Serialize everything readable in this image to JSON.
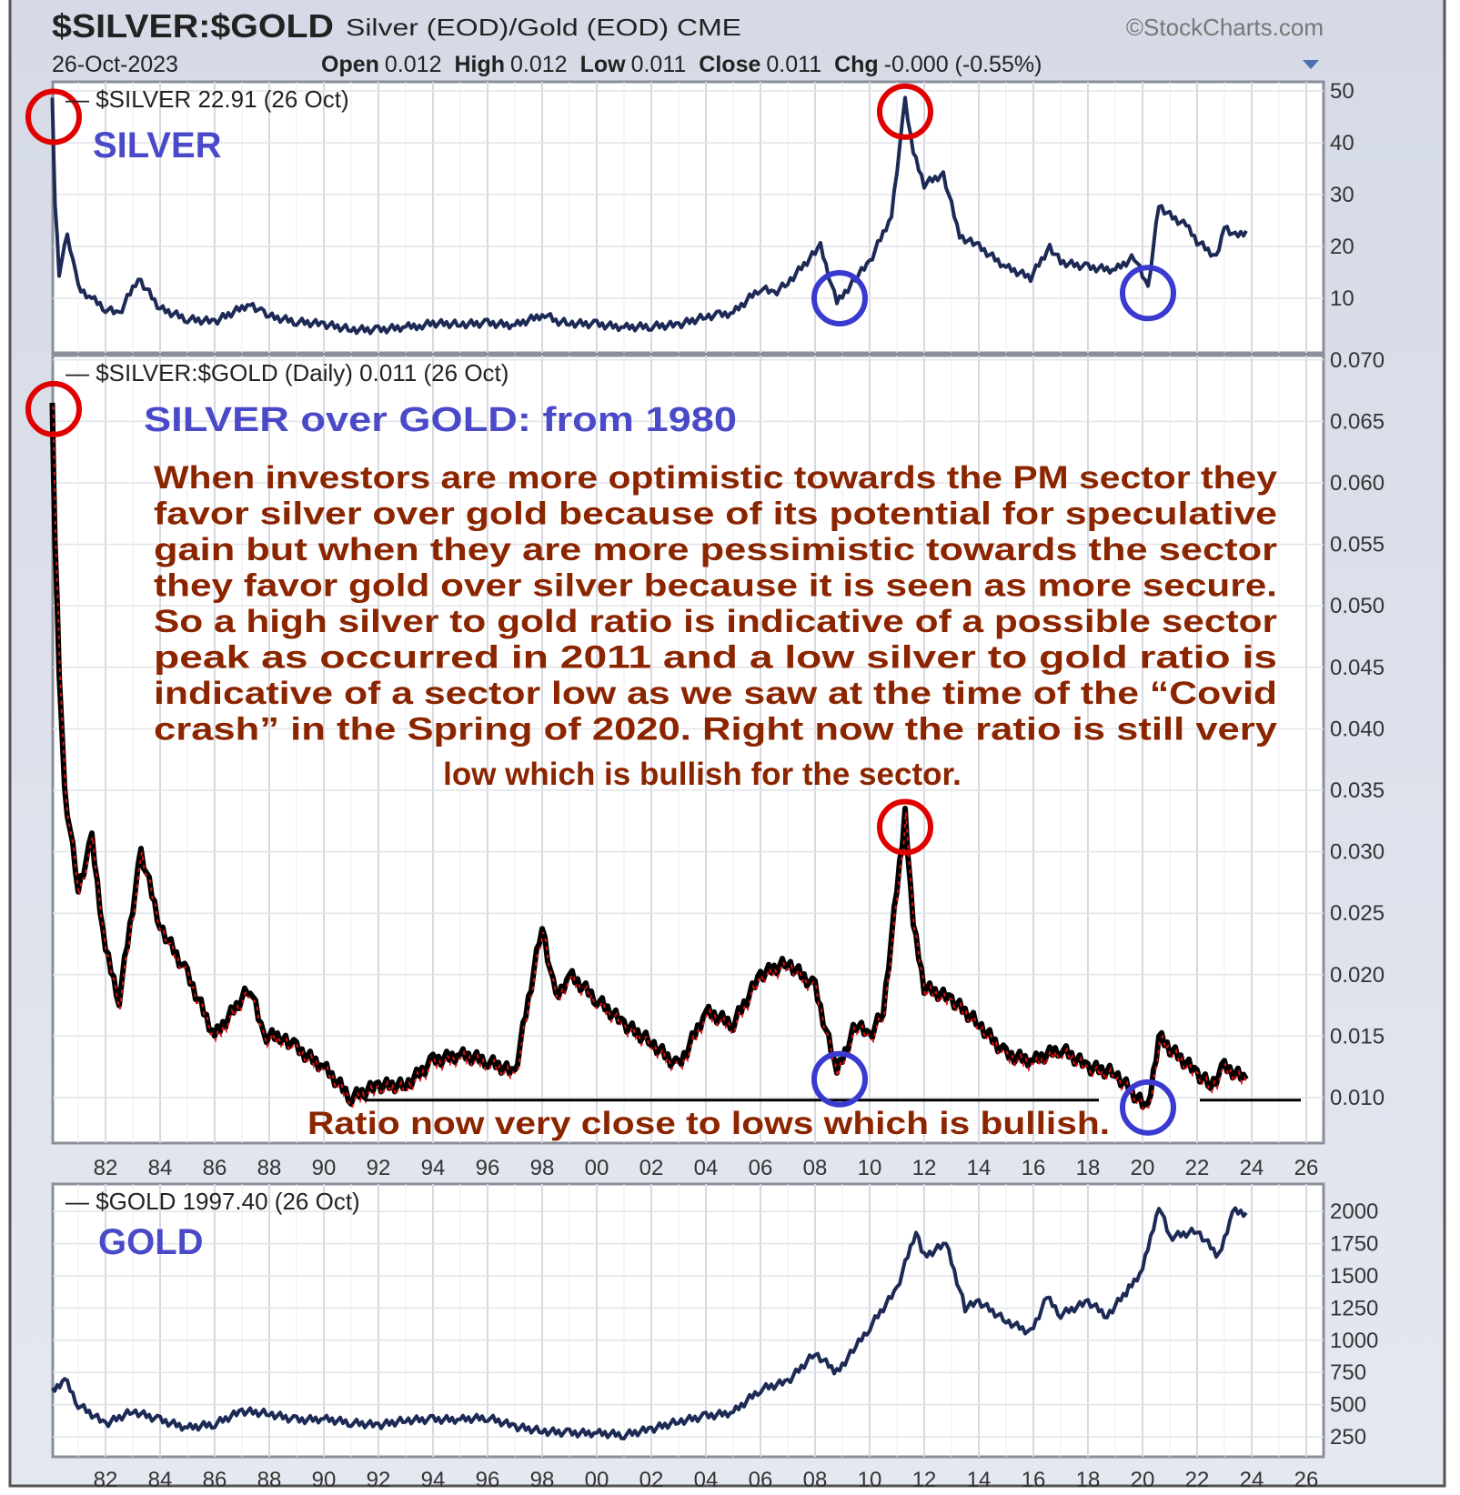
{
  "header": {
    "symbol": "$SILVER:$GOLD",
    "description": "Silver (EOD)/Gold (EOD)  CME",
    "source": "©StockCharts.com",
    "date": "26-Oct-2023",
    "open_label": "Open",
    "open": "0.012",
    "high_label": "High",
    "high": "0.012",
    "low_label": "Low",
    "low": "0.011",
    "close_label": "Close",
    "close": "0.011",
    "chg_label": "Chg",
    "chg": "-0.000 (-0.55%)",
    "dropdown_icon": "triangle-down-icon"
  },
  "colors": {
    "silver_line": "#1c2a55",
    "ratio_line": "#000000",
    "ratio_overlay": "#e01010",
    "gold_line": "#1c2a55",
    "annotation_text": "#8b2500",
    "title_blue": "#4a4ac8",
    "circle_high": "#e00000",
    "circle_low": "#3a3ad0"
  },
  "annotations": {
    "silver_title": "SILVER",
    "ratio_title": "SILVER over GOLD: from 1980",
    "gold_title": "GOLD",
    "paragraph": [
      "When investors are more optimistic towards the PM sector they",
      "favor silver over gold because of its potential for speculative",
      "gain but when they are more pessimistic towards the sector",
      "they favor gold over silver because it is seen as more secure.",
      "So a high silver to gold ratio is indicative of a possible sector",
      "peak as occurred in 2011 and a low silver to gold ratio is",
      "indicative of a sector low as we saw at the time of the “Covid",
      "crash” in the Spring of 2020. Right now the ratio is still very",
      "low which is bullish for the sector."
    ],
    "bottom_note": "Ratio now very close to lows which is bullish."
  },
  "chart_data": [
    {
      "type": "line",
      "title": "$SILVER 22.91 (26 Oct)",
      "ylim": [
        0,
        52
      ],
      "yticks": [
        "50",
        "40",
        "30",
        "20",
        "10"
      ],
      "ytick_values": [
        50,
        40,
        30,
        20,
        10
      ],
      "xlim": [
        1980,
        2026.6
      ],
      "series": [
        {
          "name": "$SILVER",
          "x": [
            1980.05,
            1980.15,
            1980.3,
            1980.6,
            1980.8,
            1981,
            1981.5,
            1982,
            1982.5,
            1983.2,
            1983.6,
            1984,
            1985,
            1986,
            1987.3,
            1987.8,
            1988,
            1989,
            1990,
            1991,
            1992,
            1993,
            1993.6,
            1994,
            1995,
            1996,
            1997,
            1998.1,
            1998.5,
            1999,
            2000,
            2001,
            2002,
            2003,
            2004,
            2004.5,
            2005,
            2006,
            2006.5,
            2007,
            2008.2,
            2008.8,
            2009.5,
            2010,
            2010.8,
            2011.3,
            2011.6,
            2012,
            2012.7,
            2013.3,
            2014,
            2015,
            2015.9,
            2016.6,
            2017,
            2018,
            2019,
            2019.7,
            2020.2,
            2020.6,
            2021,
            2021.6,
            2022,
            2022.7,
            2023,
            2023.4,
            2023.8
          ],
          "values": [
            48,
            28,
            15,
            22,
            18,
            12,
            10,
            8,
            7,
            14,
            11,
            8,
            6,
            5.5,
            9,
            7,
            6.5,
            5.5,
            5,
            4,
            3.9,
            4.5,
            4.8,
            5.2,
            5,
            5.2,
            4.8,
            7,
            5.6,
            5.2,
            5,
            4.4,
            4.6,
            4.9,
            6.5,
            6.8,
            7.2,
            12,
            11,
            13,
            20,
            9,
            14,
            17,
            26,
            48,
            38,
            32,
            34,
            22,
            20,
            16,
            14,
            20,
            17,
            16,
            15.5,
            18,
            12,
            28,
            26,
            24,
            21,
            18,
            24,
            22,
            23
          ]
        }
      ],
      "markers": [
        {
          "year": 1980.1,
          "value": 45,
          "kind": "high"
        },
        {
          "year": 2011.3,
          "value": 46,
          "kind": "high"
        },
        {
          "year": 2008.9,
          "value": 10,
          "kind": "low"
        },
        {
          "year": 2020.2,
          "value": 11,
          "kind": "low"
        }
      ]
    },
    {
      "type": "line",
      "title": "$SILVER:$GOLD (Daily) 0.011 (26 Oct)",
      "ylim": [
        0.006,
        0.071
      ],
      "yticks": [
        "0.070",
        "0.065",
        "0.060",
        "0.055",
        "0.050",
        "0.045",
        "0.040",
        "0.035",
        "0.030",
        "0.025",
        "0.020",
        "0.015",
        "0.010"
      ],
      "ytick_values": [
        0.07,
        0.065,
        0.06,
        0.055,
        0.05,
        0.045,
        0.04,
        0.035,
        0.03,
        0.025,
        0.02,
        0.015,
        0.01
      ],
      "series": [
        {
          "name": "$SILVER:$GOLD",
          "x": [
            1980.05,
            1980.15,
            1980.3,
            1980.5,
            1981,
            1981.5,
            1982,
            1982.5,
            1983.3,
            1984,
            1985,
            1986,
            1987.3,
            1987.8,
            1988.5,
            1989,
            1990,
            1991,
            1992,
            1993,
            1994,
            1995,
            1996,
            1997,
            1998,
            1998.5,
            1999,
            2000,
            2001,
            2002,
            2003,
            2004,
            2005,
            2006,
            2007,
            2008,
            2008.8,
            2009.5,
            2010,
            2010.5,
            2011.3,
            2011.6,
            2012,
            2013,
            2014,
            2015,
            2016,
            2017,
            2018,
            2019,
            2020.2,
            2020.6,
            2021,
            2022,
            2022.5,
            2023,
            2023.8
          ],
          "values": [
            0.066,
            0.055,
            0.045,
            0.035,
            0.027,
            0.031,
            0.022,
            0.018,
            0.03,
            0.024,
            0.02,
            0.015,
            0.019,
            0.015,
            0.015,
            0.014,
            0.0125,
            0.01,
            0.011,
            0.011,
            0.013,
            0.0135,
            0.013,
            0.012,
            0.024,
            0.018,
            0.02,
            0.018,
            0.016,
            0.0145,
            0.0125,
            0.017,
            0.016,
            0.02,
            0.021,
            0.019,
            0.012,
            0.016,
            0.015,
            0.017,
            0.033,
            0.024,
            0.019,
            0.018,
            0.016,
            0.0135,
            0.013,
            0.014,
            0.0125,
            0.012,
            0.009,
            0.015,
            0.014,
            0.012,
            0.011,
            0.0125,
            0.0115
          ]
        }
      ],
      "support_lines": [
        {
          "from": 1991.5,
          "to": 2018.4,
          "value": 0.0098
        },
        {
          "from": 2022.1,
          "to": 2025.8,
          "value": 0.0098
        }
      ],
      "markers": [
        {
          "year": 1980.1,
          "value": 0.066,
          "kind": "high"
        },
        {
          "year": 2011.3,
          "value": 0.032,
          "kind": "high"
        },
        {
          "year": 2008.9,
          "value": 0.0115,
          "kind": "low"
        },
        {
          "year": 2020.2,
          "value": 0.0092,
          "kind": "low"
        }
      ],
      "xticks": [
        "82",
        "84",
        "86",
        "88",
        "90",
        "92",
        "94",
        "96",
        "98",
        "00",
        "02",
        "04",
        "06",
        "08",
        "10",
        "12",
        "14",
        "16",
        "18",
        "20",
        "22",
        "24",
        "26"
      ]
    },
    {
      "type": "line",
      "title": "$GOLD 1997.40 (26 Oct)",
      "yticks": [
        "2000",
        "1750",
        "1500",
        "1250",
        "1000",
        "750",
        "500",
        "250"
      ],
      "ytick_values": [
        2000,
        1750,
        1500,
        1250,
        1000,
        750,
        500,
        250
      ],
      "series": [
        {
          "name": "$GOLD",
          "x": [
            1980.05,
            1980.5,
            1981,
            1982,
            1983,
            1984,
            1985,
            1986,
            1987,
            1988,
            1989,
            1990,
            1991,
            1992,
            1993,
            1994,
            1995,
            1996,
            1997,
            1998,
            1999,
            2000,
            2001,
            2002,
            2003,
            2004,
            2005,
            2006,
            2007,
            2008,
            2008.8,
            2009.5,
            2010,
            2011,
            2011.7,
            2012,
            2012.8,
            2013.5,
            2014,
            2015,
            2015.9,
            2016.5,
            2017,
            2018,
            2018.7,
            2019.5,
            2020,
            2020.6,
            2021,
            2022,
            2022.8,
            2023.3,
            2023.8
          ],
          "values": [
            600,
            700,
            500,
            350,
            450,
            380,
            320,
            350,
            450,
            430,
            380,
            390,
            360,
            340,
            380,
            385,
            385,
            400,
            330,
            295,
            280,
            280,
            265,
            310,
            370,
            410,
            440,
            620,
            680,
            900,
            750,
            950,
            1100,
            1400,
            1850,
            1650,
            1750,
            1250,
            1300,
            1150,
            1060,
            1330,
            1200,
            1300,
            1190,
            1400,
            1550,
            2050,
            1800,
            1850,
            1650,
            2000,
            1990
          ]
        }
      ],
      "xticks": [
        "82",
        "84",
        "86",
        "88",
        "90",
        "92",
        "94",
        "96",
        "98",
        "00",
        "02",
        "04",
        "06",
        "08",
        "10",
        "12",
        "14",
        "16",
        "18",
        "20",
        "22",
        "24",
        "26"
      ]
    }
  ]
}
